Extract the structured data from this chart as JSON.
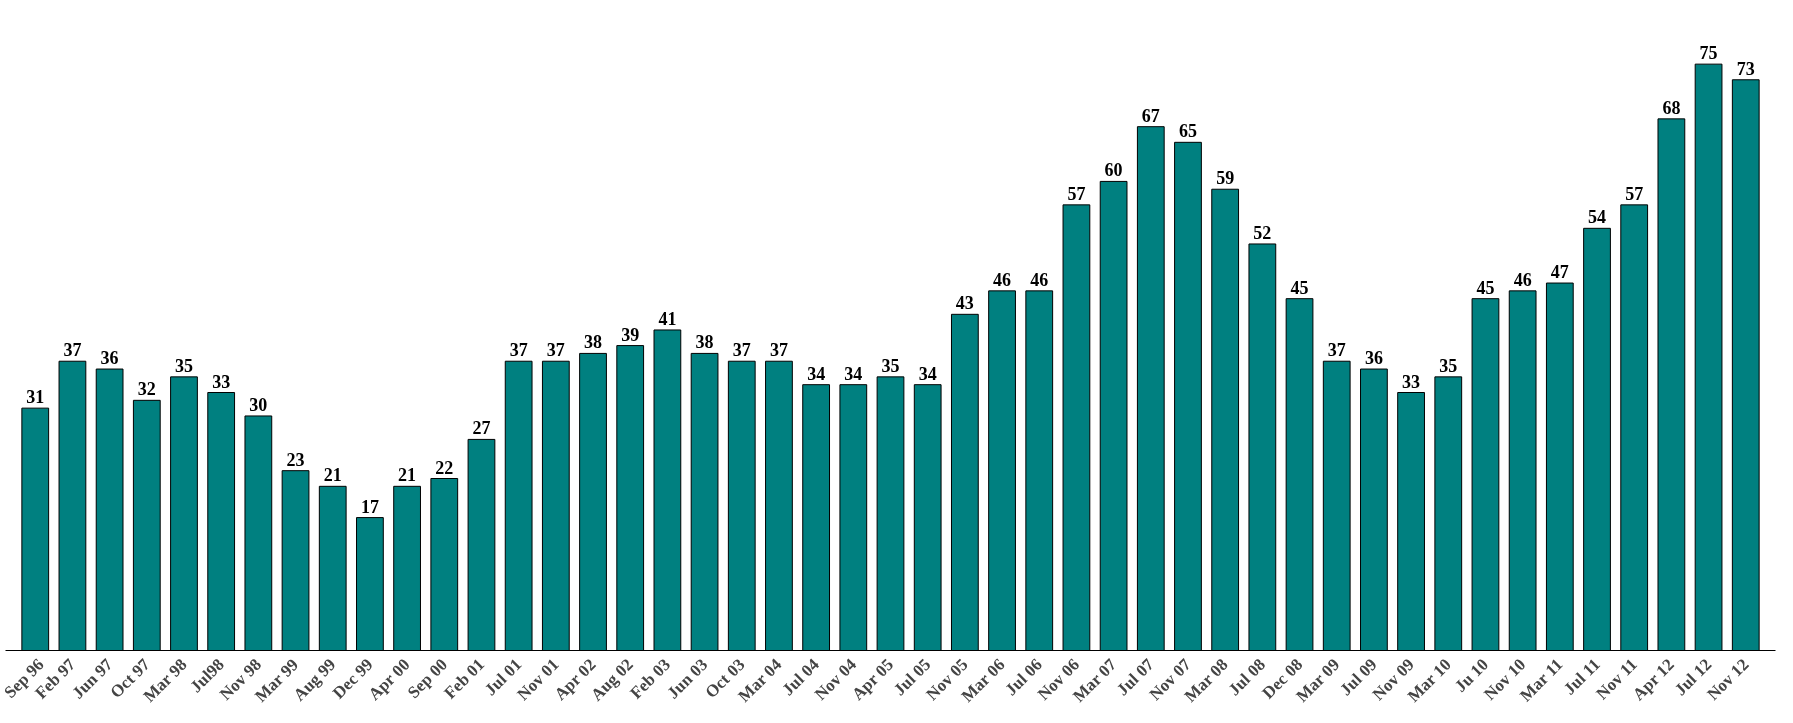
{
  "chart_data": {
    "type": "bar",
    "categories": [
      "Sep 96",
      "Feb 97",
      "Jun 97",
      "Oct 97",
      "Mar 98",
      "Jul98",
      "Nov 98",
      "Mar 99",
      "Aug 99",
      "Dec 99",
      "Apr 00",
      "Sep 00",
      "Feb 01",
      "Jul 01",
      "Nov 01",
      "Apr 02",
      "Aug 02",
      "Feb 03",
      "Jun 03",
      "Oct 03",
      "Mar 04",
      "Jul 04",
      "Nov 04",
      "Apr 05",
      "Jul 05",
      "Nov 05",
      "Mar 06",
      "Jul 06",
      "Nov 06",
      "Mar 07",
      "Jul 07",
      "Nov 07",
      "Mar 08",
      "Jul 08",
      "Dec 08",
      "Mar 09",
      "Jul 09",
      "Nov 09",
      "Mar 10",
      "Ju 10",
      "Nov 10",
      "Mar 11",
      "Jul 11",
      "Nov 11",
      "Apr 12",
      "Jul 12",
      "Nov 12"
    ],
    "values": [
      31,
      37,
      36,
      32,
      35,
      33,
      30,
      23,
      21,
      17,
      21,
      22,
      27,
      37,
      37,
      38,
      39,
      41,
      38,
      37,
      37,
      34,
      34,
      35,
      34,
      43,
      46,
      46,
      57,
      60,
      67,
      65,
      59,
      52,
      45,
      37,
      36,
      33,
      35,
      45,
      46,
      47,
      54,
      57,
      68,
      75,
      73
    ],
    "color": "#008080",
    "data_labels": true,
    "grid": false
  }
}
